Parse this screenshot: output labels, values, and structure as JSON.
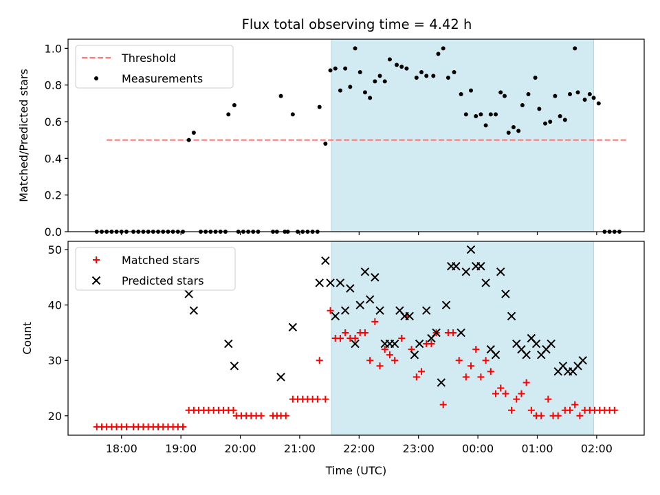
{
  "title": "Flux total observing time = 4.42 h",
  "xlabel": "Time (UTC)",
  "colors": {
    "threshold": "#ff7777",
    "measurement": "#000000",
    "matched": "#ff0000",
    "predicted": "#000000",
    "span": "#add8e6"
  },
  "chart_data": [
    {
      "type": "scatter",
      "ylabel": "Matched/Predicted stars",
      "ylim": [
        0,
        1.05
      ],
      "yticks": [
        "0.0",
        "0.2",
        "0.4",
        "0.6",
        "0.8",
        "1.0"
      ],
      "legend_position": "upper-left",
      "threshold": {
        "name": "Threshold",
        "value": 0.5,
        "x_range": [
          "17:45",
          "02:30"
        ]
      },
      "highlight_span": [
        "21:32",
        "01:57"
      ],
      "series": [
        {
          "name": "Measurements",
          "points": [
            [
              "17:35",
              0
            ],
            [
              "17:40",
              0
            ],
            [
              "17:45",
              0
            ],
            [
              "17:50",
              0
            ],
            [
              "17:55",
              0
            ],
            [
              "18:00",
              0
            ],
            [
              "18:05",
              0
            ],
            [
              "18:12",
              0
            ],
            [
              "18:17",
              0
            ],
            [
              "18:22",
              0
            ],
            [
              "18:27",
              0
            ],
            [
              "18:32",
              0
            ],
            [
              "18:37",
              0
            ],
            [
              "18:42",
              0
            ],
            [
              "18:47",
              0
            ],
            [
              "18:52",
              0
            ],
            [
              "18:57",
              0
            ],
            [
              "19:02",
              0
            ],
            [
              "19:08",
              0.5
            ],
            [
              "19:13",
              0.54
            ],
            [
              "19:20",
              0
            ],
            [
              "19:25",
              0
            ],
            [
              "19:30",
              0
            ],
            [
              "19:35",
              0
            ],
            [
              "19:40",
              0
            ],
            [
              "19:45",
              0
            ],
            [
              "19:48",
              0.64
            ],
            [
              "19:54",
              0.69
            ],
            [
              "19:58",
              0
            ],
            [
              "20:03",
              0
            ],
            [
              "20:08",
              0
            ],
            [
              "20:13",
              0
            ],
            [
              "20:18",
              0
            ],
            [
              "20:33",
              0
            ],
            [
              "20:37",
              0
            ],
            [
              "20:41",
              0.74
            ],
            [
              "20:45",
              0
            ],
            [
              "20:48",
              0
            ],
            [
              "20:53",
              0.64
            ],
            [
              "20:58",
              0
            ],
            [
              "21:03",
              0
            ],
            [
              "21:08",
              0
            ],
            [
              "21:13",
              0
            ],
            [
              "21:18",
              0
            ],
            [
              "21:20",
              0.68
            ],
            [
              "21:26",
              0.48
            ],
            [
              "21:31",
              0.88
            ],
            [
              "21:36",
              0.89
            ],
            [
              "21:41",
              0.77
            ],
            [
              "21:46",
              0.89
            ],
            [
              "21:51",
              0.79
            ],
            [
              "21:56",
              1.0
            ],
            [
              "22:01",
              0.87
            ],
            [
              "22:06",
              0.76
            ],
            [
              "22:11",
              0.73
            ],
            [
              "22:16",
              0.82
            ],
            [
              "22:21",
              0.85
            ],
            [
              "22:26",
              0.82
            ],
            [
              "22:31",
              0.94
            ],
            [
              "22:38",
              0.91
            ],
            [
              "22:43",
              0.9
            ],
            [
              "22:48",
              0.89
            ],
            [
              "22:58",
              0.84
            ],
            [
              "23:03",
              0.87
            ],
            [
              "23:08",
              0.85
            ],
            [
              "23:15",
              0.85
            ],
            [
              "23:20",
              0.97
            ],
            [
              "23:25",
              1.0
            ],
            [
              "23:30",
              0.84
            ],
            [
              "23:36",
              0.87
            ],
            [
              "23:43",
              0.75
            ],
            [
              "23:48",
              0.64
            ],
            [
              "23:53",
              0.77
            ],
            [
              "23:58",
              0.63
            ],
            [
              "00:03",
              0.64
            ],
            [
              "00:08",
              0.58
            ],
            [
              "00:13",
              0.64
            ],
            [
              "00:18",
              0.64
            ],
            [
              "00:23",
              0.76
            ],
            [
              "00:27",
              0.74
            ],
            [
              "00:31",
              0.54
            ],
            [
              "00:36",
              0.57
            ],
            [
              "00:41",
              0.55
            ],
            [
              "00:45",
              0.69
            ],
            [
              "00:51",
              0.75
            ],
            [
              "00:58",
              0.84
            ],
            [
              "01:02",
              0.67
            ],
            [
              "01:08",
              0.59
            ],
            [
              "01:13",
              0.6
            ],
            [
              "01:18",
              0.74
            ],
            [
              "01:23",
              0.63
            ],
            [
              "01:28",
              0.61
            ],
            [
              "01:33",
              0.75
            ],
            [
              "01:38",
              1.0
            ],
            [
              "01:41",
              0.76
            ],
            [
              "01:48",
              0.72
            ],
            [
              "01:53",
              0.75
            ],
            [
              "01:57",
              0.73
            ],
            [
              "02:02",
              0.7
            ],
            [
              "02:08",
              0
            ],
            [
              "02:13",
              0
            ],
            [
              "02:18",
              0
            ],
            [
              "02:23",
              0
            ]
          ]
        }
      ]
    },
    {
      "type": "scatter",
      "ylabel": "Count",
      "ylim": [
        16.5,
        51.5
      ],
      "yticks": [
        "20",
        "30",
        "40",
        "50"
      ],
      "legend_position": "upper-left",
      "highlight_span": [
        "21:32",
        "01:57"
      ],
      "series": [
        {
          "name": "Matched stars",
          "points": [
            [
              "17:35",
              18
            ],
            [
              "17:40",
              18
            ],
            [
              "17:45",
              18
            ],
            [
              "17:50",
              18
            ],
            [
              "17:55",
              18
            ],
            [
              "18:00",
              18
            ],
            [
              "18:05",
              18
            ],
            [
              "18:12",
              18
            ],
            [
              "18:17",
              18
            ],
            [
              "18:22",
              18
            ],
            [
              "18:27",
              18
            ],
            [
              "18:32",
              18
            ],
            [
              "18:37",
              18
            ],
            [
              "18:42",
              18
            ],
            [
              "18:47",
              18
            ],
            [
              "18:52",
              18
            ],
            [
              "18:57",
              18
            ],
            [
              "19:02",
              18
            ],
            [
              "19:08",
              21
            ],
            [
              "19:13",
              21
            ],
            [
              "19:18",
              21
            ],
            [
              "19:23",
              21
            ],
            [
              "19:28",
              21
            ],
            [
              "19:33",
              21
            ],
            [
              "19:38",
              21
            ],
            [
              "19:43",
              21
            ],
            [
              "19:48",
              21
            ],
            [
              "19:53",
              21
            ],
            [
              "19:56",
              20
            ],
            [
              "20:01",
              20
            ],
            [
              "20:06",
              20
            ],
            [
              "20:11",
              20
            ],
            [
              "20:16",
              20
            ],
            [
              "20:21",
              20
            ],
            [
              "20:33",
              20
            ],
            [
              "20:37",
              20
            ],
            [
              "20:41",
              20
            ],
            [
              "20:46",
              20
            ],
            [
              "20:53",
              23
            ],
            [
              "20:58",
              23
            ],
            [
              "21:03",
              23
            ],
            [
              "21:08",
              23
            ],
            [
              "21:13",
              23
            ],
            [
              "21:18",
              23
            ],
            [
              "21:20",
              30
            ],
            [
              "21:26",
              23
            ],
            [
              "21:31",
              39
            ],
            [
              "21:36",
              34
            ],
            [
              "21:41",
              34
            ],
            [
              "21:46",
              35
            ],
            [
              "21:51",
              34
            ],
            [
              "21:56",
              34
            ],
            [
              "22:01",
              35
            ],
            [
              "22:06",
              35
            ],
            [
              "22:11",
              30
            ],
            [
              "22:16",
              37
            ],
            [
              "22:21",
              29
            ],
            [
              "22:26",
              32
            ],
            [
              "22:31",
              31
            ],
            [
              "22:36",
              30
            ],
            [
              "22:43",
              34
            ],
            [
              "22:48",
              38
            ],
            [
              "22:53",
              32
            ],
            [
              "22:58",
              27
            ],
            [
              "23:03",
              28
            ],
            [
              "23:08",
              33
            ],
            [
              "23:13",
              33
            ],
            [
              "23:18",
              35
            ],
            [
              "23:25",
              22
            ],
            [
              "23:30",
              35
            ],
            [
              "23:35",
              35
            ],
            [
              "23:41",
              30
            ],
            [
              "23:48",
              27
            ],
            [
              "23:53",
              29
            ],
            [
              "23:58",
              32
            ],
            [
              "00:03",
              27
            ],
            [
              "00:08",
              30
            ],
            [
              "00:13",
              28
            ],
            [
              "00:18",
              24
            ],
            [
              "00:23",
              25
            ],
            [
              "00:28",
              24
            ],
            [
              "00:34",
              21
            ],
            [
              "00:39",
              23
            ],
            [
              "00:44",
              24
            ],
            [
              "00:49",
              26
            ],
            [
              "00:54",
              21
            ],
            [
              "00:59",
              20
            ],
            [
              "01:04",
              20
            ],
            [
              "01:11",
              23
            ],
            [
              "01:16",
              20
            ],
            [
              "01:21",
              20
            ],
            [
              "01:28",
              21
            ],
            [
              "01:33",
              21
            ],
            [
              "01:38",
              22
            ],
            [
              "01:43",
              20
            ],
            [
              "01:48",
              21
            ],
            [
              "01:53",
              21
            ],
            [
              "01:58",
              21
            ],
            [
              "02:03",
              21
            ],
            [
              "02:08",
              21
            ],
            [
              "02:13",
              21
            ],
            [
              "02:18",
              21
            ]
          ]
        },
        {
          "name": "Predicted stars",
          "points": [
            [
              "19:08",
              42
            ],
            [
              "19:13",
              39
            ],
            [
              "19:48",
              33
            ],
            [
              "19:54",
              29
            ],
            [
              "20:41",
              27
            ],
            [
              "20:53",
              36
            ],
            [
              "21:20",
              44
            ],
            [
              "21:26",
              48
            ],
            [
              "21:31",
              44
            ],
            [
              "21:36",
              38
            ],
            [
              "21:41",
              44
            ],
            [
              "21:46",
              39
            ],
            [
              "21:51",
              43
            ],
            [
              "21:56",
              33
            ],
            [
              "22:01",
              40
            ],
            [
              "22:06",
              46
            ],
            [
              "22:11",
              41
            ],
            [
              "22:16",
              45
            ],
            [
              "22:21",
              39
            ],
            [
              "22:26",
              33
            ],
            [
              "22:31",
              33
            ],
            [
              "22:36",
              33
            ],
            [
              "22:41",
              39
            ],
            [
              "22:46",
              38
            ],
            [
              "22:51",
              38
            ],
            [
              "22:56",
              31
            ],
            [
              "23:01",
              33
            ],
            [
              "23:08",
              39
            ],
            [
              "23:13",
              34
            ],
            [
              "23:18",
              35
            ],
            [
              "23:23",
              26
            ],
            [
              "23:28",
              40
            ],
            [
              "23:33",
              47
            ],
            [
              "23:38",
              47
            ],
            [
              "23:43",
              35
            ],
            [
              "23:48",
              46
            ],
            [
              "23:53",
              50
            ],
            [
              "23:58",
              47
            ],
            [
              "00:03",
              47
            ],
            [
              "00:08",
              44
            ],
            [
              "00:13",
              32
            ],
            [
              "00:18",
              31
            ],
            [
              "00:23",
              46
            ],
            [
              "00:28",
              42
            ],
            [
              "00:34",
              38
            ],
            [
              "00:39",
              33
            ],
            [
              "00:44",
              32
            ],
            [
              "00:49",
              31
            ],
            [
              "00:54",
              34
            ],
            [
              "00:59",
              33
            ],
            [
              "01:04",
              31
            ],
            [
              "01:09",
              32
            ],
            [
              "01:14",
              33
            ],
            [
              "01:21",
              28
            ],
            [
              "01:26",
              29
            ],
            [
              "01:31",
              28
            ],
            [
              "01:36",
              28
            ],
            [
              "01:41",
              29
            ],
            [
              "01:46",
              30
            ]
          ]
        }
      ]
    }
  ],
  "xaxis": {
    "origin": "17:00",
    "range": [
      "17:06",
      "02:48"
    ],
    "ticks": [
      "18:00",
      "19:00",
      "20:00",
      "21:00",
      "22:00",
      "23:00",
      "00:00",
      "01:00",
      "02:00"
    ]
  }
}
